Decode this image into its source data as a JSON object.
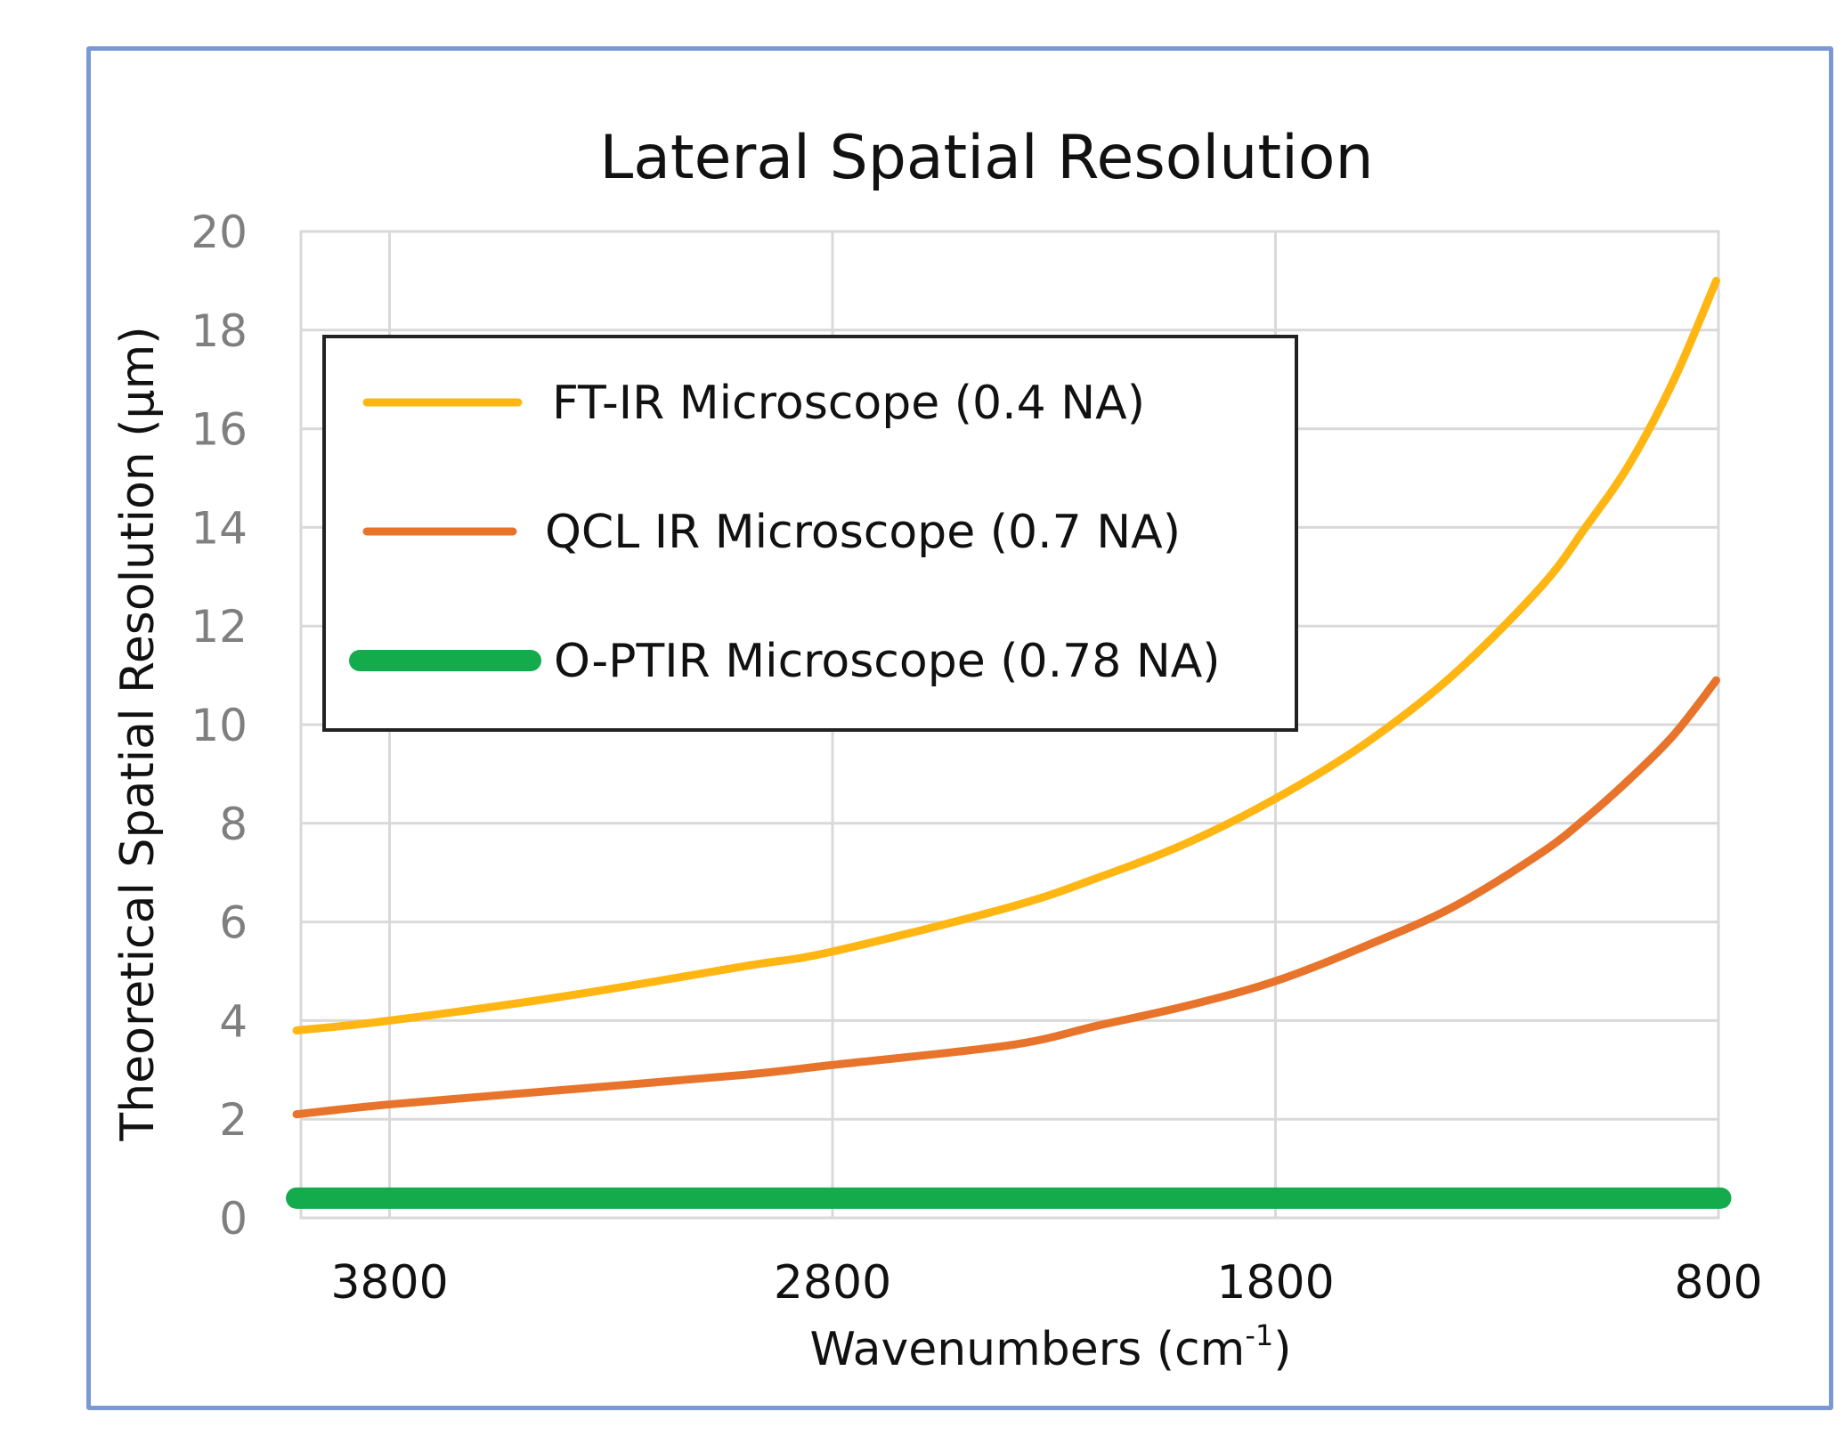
{
  "chart_data": {
    "type": "line",
    "title": "Lateral Spatial Resolution",
    "xlabel": "Wavenumbers (cm",
    "xlabel_sup": "-1",
    "xlabel_end": ")",
    "ylabel": "Theoretical Spatial Resolution (µm)",
    "xlim": [
      4000,
      800
    ],
    "ylim": [
      0,
      20
    ],
    "xticks": [
      "3800",
      "2800",
      "1800",
      "800"
    ],
    "yticks": [
      "0",
      "2",
      "4",
      "6",
      "8",
      "10",
      "12",
      "14",
      "16",
      "18",
      "20"
    ],
    "grid": true,
    "legend_position": "top-left",
    "series": [
      {
        "name": "FT-IR Microscope (0.4 NA)",
        "color": "#ffb612",
        "x": [
          4010,
          3800,
          3400,
          3000,
          2800,
          2400,
          2200,
          2000,
          1800,
          1600,
          1400,
          1200,
          1100,
          1000,
          900,
          805
        ],
        "y": [
          3.8,
          4.0,
          4.5,
          5.1,
          5.4,
          6.3,
          6.9,
          7.6,
          8.5,
          9.6,
          11.0,
          12.8,
          14.0,
          15.3,
          17.0,
          19.0
        ]
      },
      {
        "name": "QCL IR Microscope (0.7 NA)",
        "color": "#e8732a",
        "x": [
          4010,
          3800,
          3400,
          3000,
          2800,
          2400,
          2200,
          2000,
          1800,
          1600,
          1400,
          1200,
          1100,
          1000,
          900,
          805
        ],
        "y": [
          2.1,
          2.3,
          2.6,
          2.9,
          3.1,
          3.5,
          3.9,
          4.3,
          4.8,
          5.5,
          6.3,
          7.4,
          8.1,
          8.9,
          9.8,
          10.9
        ]
      },
      {
        "name": "O-PTIR Microscope (0.78 NA)",
        "color": "#13ab4c",
        "x": [
          4010,
          795
        ],
        "y": [
          0.4,
          0.4
        ]
      }
    ]
  }
}
